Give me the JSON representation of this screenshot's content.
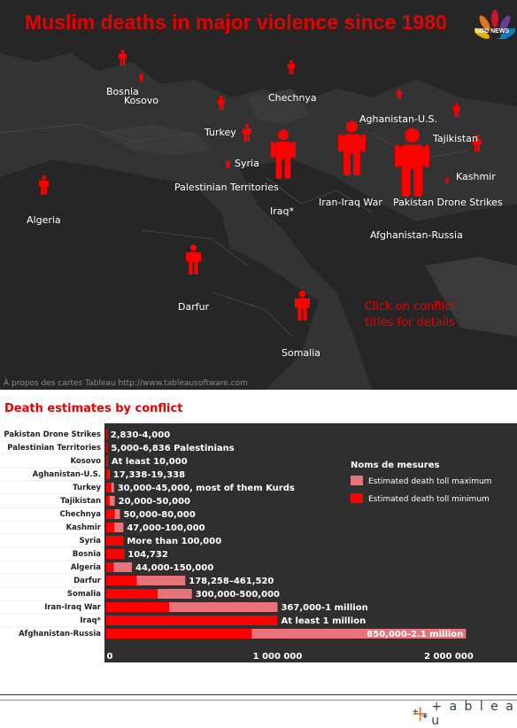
{
  "map": {
    "title": "Muslim deaths in major violence since 1980",
    "logo_text": "NBC NEWS",
    "hint": "Click on conflict titles for details",
    "credit": "À propos des cartes Tableau http://www.tableausoftware.com",
    "figure_color": "#ff0000",
    "labels": [
      "Bosnia",
      "Kosovo",
      "Chechnya",
      "Aghanistan-U.S.",
      "Turkey",
      "Tajikistan",
      "Syria",
      "Kashmir",
      "Palestinian Territories",
      "Iraq*",
      "Iran-Iraq War",
      "Pakistan Drone Strikes",
      "Algeria",
      "Afghanistan-Russia",
      "Darfur",
      "Somalia"
    ]
  },
  "chart_title": "Death estimates by conflict",
  "chart_data": {
    "type": "bar",
    "orientation": "horizontal",
    "categories": [
      "Pakistan Drone Strikes",
      "Palestinian Territories",
      "Kosovo",
      "Aghanistan-U.S.",
      "Turkey",
      "Tajikistan",
      "Chechnya",
      "Kashmir",
      "Syria",
      "Bosnia",
      "Algeria",
      "Darfur",
      "Somalia",
      "Iran-Iraq War",
      "Iraq*",
      "Afghanistan-Russia"
    ],
    "series": [
      {
        "name": "Estimated death toll maximum",
        "color": "#e8737a",
        "values": [
          4000,
          6836,
          10000,
          19338,
          45000,
          50000,
          80000,
          100000,
          100000,
          104732,
          150000,
          461520,
          500000,
          1000000,
          1000000,
          2100000
        ]
      },
      {
        "name": "Estimated death toll minimum",
        "color": "#ff0000",
        "values": [
          2830,
          5000,
          10000,
          17338,
          30000,
          20000,
          50000,
          47000,
          100000,
          104732,
          44000,
          178258,
          300000,
          367000,
          1000000,
          850000
        ]
      }
    ],
    "bar_labels": [
      "2,830-4,000",
      "5,000-6,836 Palestinians",
      "At least 10,000",
      "17,338-19,338",
      "30,000-45,000, most of them Kurds",
      "20,000-50,000",
      "50,000-80,000",
      "47,000-100,000",
      "More than 100,000",
      "104,732",
      "44,000-150,000",
      "178,258–461,520",
      "300,000-500,000",
      "367,000-1 million",
      "At least 1 million",
      "850,000-2.1 million"
    ],
    "legend_title": "Noms de mesures",
    "legend_placement": "top-right",
    "xlim": [
      0,
      2300000
    ],
    "xticks": [
      0,
      1000000,
      2000000
    ],
    "xtick_labels": [
      "0",
      "1 000 000",
      "2 000 000"
    ]
  },
  "footer": {
    "brand": "+ a b l e a u"
  }
}
